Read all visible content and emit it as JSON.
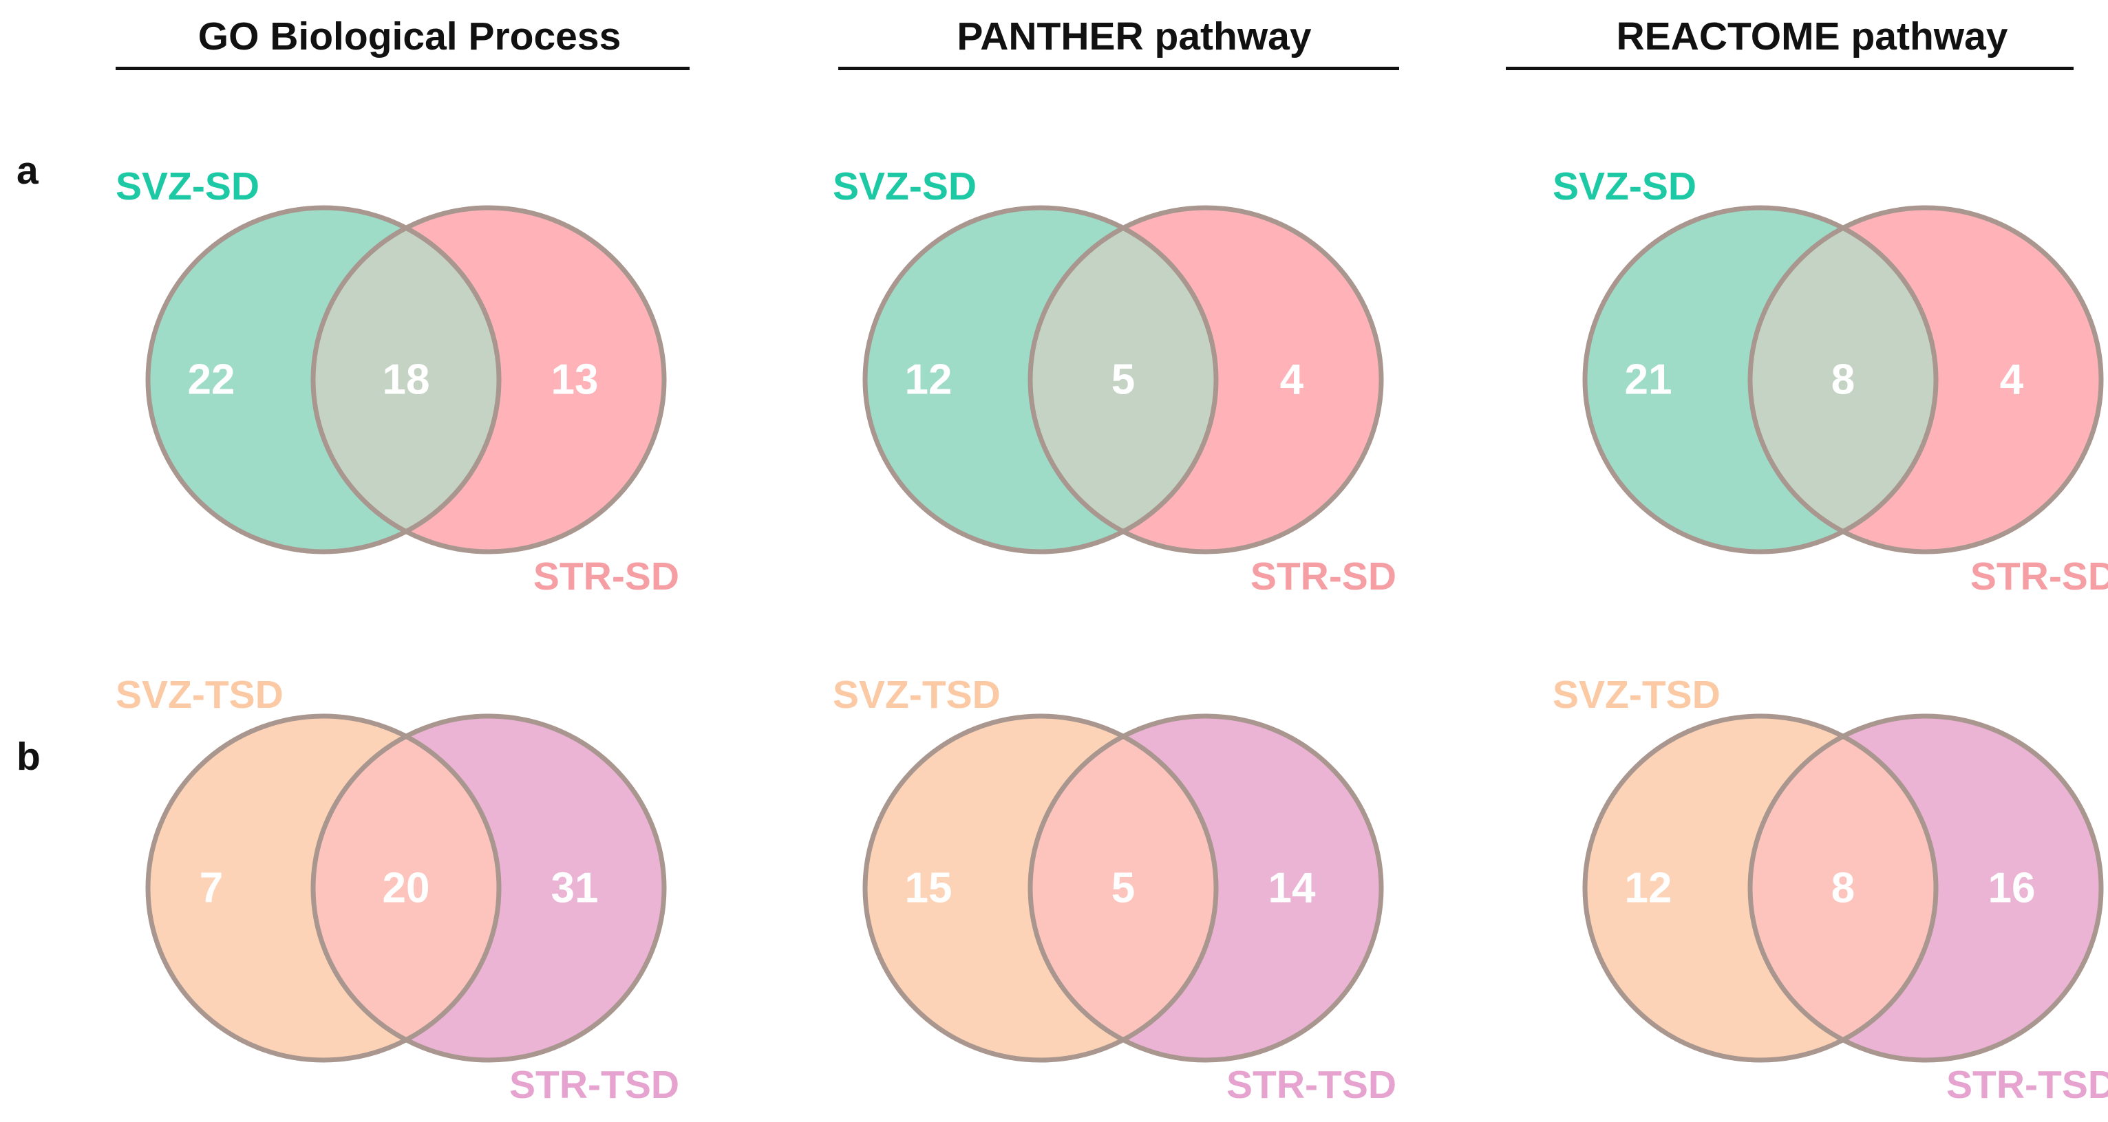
{
  "columns": [
    {
      "title": "GO Biological Process"
    },
    {
      "title": "PANTHER pathway"
    },
    {
      "title": "REACTOME pathway"
    }
  ],
  "rows": [
    {
      "label": "a",
      "set_a": {
        "name": "SVZ-SD",
        "color": "#1dc9a4",
        "fill": "#9edcc8"
      },
      "set_b": {
        "name": "STR-SD",
        "color": "#f59fa5",
        "fill": "#ffb3b8"
      },
      "overlap_fill": "#c5d3c4",
      "stroke": "#a8968f",
      "diagrams": [
        {
          "only_a": "22",
          "both": "18",
          "only_b": "13"
        },
        {
          "only_a": "12",
          "both": "5",
          "only_b": "4"
        },
        {
          "only_a": "21",
          "both": "8",
          "only_b": "4"
        }
      ]
    },
    {
      "label": "b",
      "set_a": {
        "name": "SVZ-TSD",
        "color": "#fbc9a4",
        "fill": "#fdd3b7"
      },
      "set_b": {
        "name": "STR-TSD",
        "color": "#e6a3cf",
        "fill": "#ebb3d4"
      },
      "overlap_fill": "#fcc4bd",
      "stroke": "#a8968f",
      "diagrams": [
        {
          "only_a": "7",
          "both": "20",
          "only_b": "31"
        },
        {
          "only_a": "15",
          "both": "5",
          "only_b": "14"
        },
        {
          "only_a": "12",
          "both": "8",
          "only_b": "16"
        }
      ]
    }
  ]
}
